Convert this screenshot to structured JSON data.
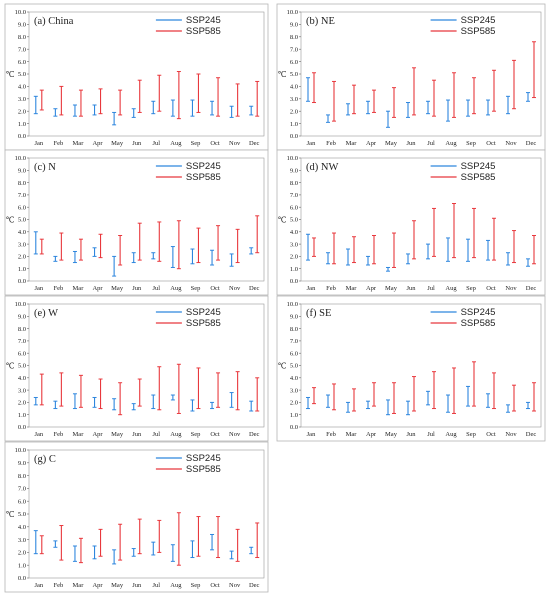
{
  "chart_data": [
    {
      "type": "errorbar",
      "title": "(a) China",
      "ylabel": "℃",
      "ylim": [
        0,
        10
      ],
      "yticks": [
        "0.0",
        "1.0",
        "2.0",
        "3.0",
        "4.0",
        "5.0",
        "6.0",
        "7.0",
        "8.0",
        "9.0",
        "10.0"
      ],
      "categories": [
        "Jan",
        "Feb",
        "Mar",
        "Apr",
        "May",
        "Jun",
        "Jul",
        "Aug",
        "Sep",
        "Oct",
        "Nov",
        "Dec"
      ],
      "series": [
        {
          "name": "SSP245",
          "color": "#2e86de",
          "ranges": [
            [
              1.8,
              3.2
            ],
            [
              1.6,
              2.2
            ],
            [
              1.6,
              2.5
            ],
            [
              1.7,
              2.5
            ],
            [
              0.9,
              1.9
            ],
            [
              1.5,
              2.2
            ],
            [
              1.8,
              2.8
            ],
            [
              1.6,
              2.9
            ],
            [
              1.6,
              2.9
            ],
            [
              1.7,
              2.8
            ],
            [
              1.5,
              2.4
            ],
            [
              1.7,
              2.4
            ]
          ]
        },
        {
          "name": "SSP585",
          "color": "#e8383d",
          "ranges": [
            [
              2.1,
              3.7
            ],
            [
              1.7,
              4.0
            ],
            [
              1.6,
              3.7
            ],
            [
              1.8,
              3.8
            ],
            [
              1.7,
              3.7
            ],
            [
              1.9,
              4.5
            ],
            [
              2.0,
              4.9
            ],
            [
              1.4,
              5.2
            ],
            [
              1.9,
              5.0
            ],
            [
              1.6,
              4.7
            ],
            [
              1.6,
              4.2
            ],
            [
              1.6,
              4.4
            ]
          ]
        }
      ]
    },
    {
      "type": "errorbar",
      "title": "(b) NE",
      "ylabel": "℃",
      "ylim": [
        0,
        10
      ],
      "yticks": [
        "0.0",
        "1.0",
        "2.0",
        "3.0",
        "4.0",
        "5.0",
        "6.0",
        "7.0",
        "8.0",
        "9.0",
        "10.0"
      ],
      "categories": [
        "Jan",
        "Feb",
        "Mar",
        "Apr",
        "May",
        "Jun",
        "Jul",
        "Aug",
        "Sep",
        "Oct",
        "Nov",
        "Dec"
      ],
      "series": [
        {
          "name": "SSP245",
          "color": "#2e86de",
          "ranges": [
            [
              2.8,
              4.7
            ],
            [
              1.1,
              1.7
            ],
            [
              1.7,
              2.6
            ],
            [
              1.8,
              2.8
            ],
            [
              0.7,
              2.0
            ],
            [
              1.5,
              2.7
            ],
            [
              1.8,
              2.8
            ],
            [
              1.2,
              2.9
            ],
            [
              1.6,
              2.9
            ],
            [
              1.7,
              2.9
            ],
            [
              1.8,
              3.2
            ],
            [
              2.8,
              3.5
            ]
          ]
        },
        {
          "name": "SSP585",
          "color": "#e8383d",
          "ranges": [
            [
              2.7,
              5.1
            ],
            [
              1.2,
              4.4
            ],
            [
              1.8,
              4.1
            ],
            [
              1.9,
              3.7
            ],
            [
              1.5,
              3.9
            ],
            [
              1.7,
              5.5
            ],
            [
              1.6,
              4.5
            ],
            [
              1.5,
              5.1
            ],
            [
              1.8,
              4.7
            ],
            [
              2.0,
              5.3
            ],
            [
              2.2,
              6.1
            ],
            [
              3.1,
              7.6
            ]
          ]
        }
      ]
    },
    {
      "type": "errorbar",
      "title": "(c) N",
      "ylabel": "℃",
      "ylim": [
        0,
        10
      ],
      "yticks": [
        "0.0",
        "1.0",
        "2.0",
        "3.0",
        "4.0",
        "5.0",
        "6.0",
        "7.0",
        "8.0",
        "9.0",
        "10.0"
      ],
      "categories": [
        "Jan",
        "Feb",
        "Mar",
        "Apr",
        "May",
        "Jun",
        "Jul",
        "Aug",
        "Sep",
        "Oct",
        "Nov",
        "Dec"
      ],
      "series": [
        {
          "name": "SSP245",
          "color": "#2e86de",
          "ranges": [
            [
              2.2,
              4.0
            ],
            [
              1.6,
              2.0
            ],
            [
              1.5,
              2.4
            ],
            [
              2.0,
              2.7
            ],
            [
              0.4,
              2.0
            ],
            [
              1.5,
              2.3
            ],
            [
              1.8,
              2.3
            ],
            [
              1.1,
              2.8
            ],
            [
              1.4,
              2.6
            ],
            [
              1.3,
              2.5
            ],
            [
              1.2,
              2.2
            ],
            [
              2.2,
              2.7
            ]
          ]
        },
        {
          "name": "SSP585",
          "color": "#e8383d",
          "ranges": [
            [
              2.2,
              3.4
            ],
            [
              1.7,
              3.9
            ],
            [
              1.7,
              3.4
            ],
            [
              1.9,
              3.8
            ],
            [
              1.3,
              3.7
            ],
            [
              1.7,
              4.7
            ],
            [
              1.6,
              4.8
            ],
            [
              1.0,
              4.9
            ],
            [
              1.5,
              4.3
            ],
            [
              1.7,
              4.5
            ],
            [
              1.5,
              4.2
            ],
            [
              2.3,
              5.3
            ]
          ]
        }
      ]
    },
    {
      "type": "errorbar",
      "title": "(d) NW",
      "ylabel": "℃",
      "ylim": [
        0,
        10
      ],
      "yticks": [
        "0.0",
        "1.0",
        "2.0",
        "3.0",
        "4.0",
        "5.0",
        "6.0",
        "7.0",
        "8.0",
        "9.0",
        "10.0"
      ],
      "categories": [
        "Jan",
        "Feb",
        "Mar",
        "Apr",
        "May",
        "Jun",
        "Jul",
        "Aug",
        "Sep",
        "Oct",
        "Nov",
        "Dec"
      ],
      "series": [
        {
          "name": "SSP245",
          "color": "#2e86de",
          "ranges": [
            [
              1.7,
              3.8
            ],
            [
              1.4,
              2.3
            ],
            [
              1.3,
              2.6
            ],
            [
              1.3,
              2.0
            ],
            [
              0.8,
              1.1
            ],
            [
              1.4,
              2.2
            ],
            [
              1.8,
              3.0
            ],
            [
              1.6,
              3.5
            ],
            [
              1.6,
              3.4
            ],
            [
              1.7,
              3.3
            ],
            [
              1.3,
              2.3
            ],
            [
              1.2,
              1.8
            ]
          ]
        },
        {
          "name": "SSP585",
          "color": "#e8383d",
          "ranges": [
            [
              2.0,
              3.5
            ],
            [
              1.4,
              3.9
            ],
            [
              1.5,
              3.6
            ],
            [
              1.4,
              3.7
            ],
            [
              1.1,
              3.9
            ],
            [
              1.8,
              4.9
            ],
            [
              2.0,
              5.9
            ],
            [
              1.9,
              6.3
            ],
            [
              1.9,
              5.9
            ],
            [
              1.7,
              5.1
            ],
            [
              1.5,
              4.1
            ],
            [
              1.4,
              3.7
            ]
          ]
        }
      ]
    },
    {
      "type": "errorbar",
      "title": "(e) W",
      "ylabel": "℃",
      "ylim": [
        0,
        10
      ],
      "yticks": [
        "0.0",
        "1.0",
        "2.0",
        "3.0",
        "4.0",
        "5.0",
        "6.0",
        "7.0",
        "8.0",
        "9.0",
        "10.0"
      ],
      "categories": [
        "Jan",
        "Feb",
        "Mar",
        "Apr",
        "May",
        "Jun",
        "Jul",
        "Aug",
        "Sep",
        "Oct",
        "Nov",
        "Dec"
      ],
      "series": [
        {
          "name": "SSP245",
          "color": "#2e86de",
          "ranges": [
            [
              1.8,
              2.4
            ],
            [
              1.5,
              2.1
            ],
            [
              1.5,
              2.7
            ],
            [
              1.6,
              2.4
            ],
            [
              1.4,
              2.3
            ],
            [
              1.4,
              1.9
            ],
            [
              1.5,
              2.6
            ],
            [
              2.2,
              2.6
            ],
            [
              1.3,
              2.2
            ],
            [
              1.5,
              2.0
            ],
            [
              1.6,
              2.8
            ],
            [
              1.3,
              2.1
            ]
          ]
        },
        {
          "name": "SSP585",
          "color": "#e8383d",
          "ranges": [
            [
              1.8,
              4.3
            ],
            [
              1.7,
              4.4
            ],
            [
              1.6,
              4.2
            ],
            [
              1.5,
              3.9
            ],
            [
              1.0,
              3.6
            ],
            [
              1.7,
              3.9
            ],
            [
              1.4,
              4.9
            ],
            [
              1.1,
              5.1
            ],
            [
              1.5,
              4.8
            ],
            [
              1.6,
              4.4
            ],
            [
              1.4,
              4.5
            ],
            [
              1.3,
              4.0
            ]
          ]
        }
      ]
    },
    {
      "type": "errorbar",
      "title": "(f) SE",
      "ylabel": "℃",
      "ylim": [
        0,
        10
      ],
      "yticks": [
        "0.0",
        "1.0",
        "2.0",
        "3.0",
        "4.0",
        "5.0",
        "6.0",
        "7.0",
        "8.0",
        "9.0",
        "10.0"
      ],
      "categories": [
        "Jan",
        "Feb",
        "Mar",
        "Apr",
        "May",
        "Jun",
        "Jul",
        "Aug",
        "Sep",
        "Oct",
        "Nov",
        "Dec"
      ],
      "series": [
        {
          "name": "SSP245",
          "color": "#2e86de",
          "ranges": [
            [
              1.5,
              2.4
            ],
            [
              1.6,
              2.6
            ],
            [
              1.2,
              2.0
            ],
            [
              1.5,
              2.1
            ],
            [
              1.0,
              2.2
            ],
            [
              1.0,
              2.1
            ],
            [
              1.8,
              2.9
            ],
            [
              1.2,
              2.6
            ],
            [
              1.7,
              3.3
            ],
            [
              1.6,
              2.7
            ],
            [
              1.2,
              1.8
            ],
            [
              1.5,
              2.0
            ]
          ]
        },
        {
          "name": "SSP585",
          "color": "#e8383d",
          "ranges": [
            [
              1.9,
              3.2
            ],
            [
              1.4,
              3.5
            ],
            [
              1.3,
              3.1
            ],
            [
              1.7,
              3.6
            ],
            [
              1.1,
              3.6
            ],
            [
              1.3,
              4.1
            ],
            [
              1.5,
              4.5
            ],
            [
              1.1,
              4.8
            ],
            [
              1.7,
              5.3
            ],
            [
              1.5,
              4.4
            ],
            [
              1.3,
              3.4
            ],
            [
              1.3,
              3.6
            ]
          ]
        }
      ]
    },
    {
      "type": "errorbar",
      "title": "(g) C",
      "ylabel": "℃",
      "ylim": [
        0,
        10
      ],
      "yticks": [
        "0.0",
        "1.0",
        "2.0",
        "3.0",
        "4.0",
        "5.0",
        "6.0",
        "7.0",
        "8.0",
        "9.0",
        "10.0"
      ],
      "categories": [
        "Jan",
        "Feb",
        "Mar",
        "Apr",
        "May",
        "Jun",
        "Jul",
        "Aug",
        "Sep",
        "Oct",
        "Nov",
        "Dec"
      ],
      "series": [
        {
          "name": "SSP245",
          "color": "#2e86de",
          "ranges": [
            [
              1.9,
              3.7
            ],
            [
              2.4,
              2.9
            ],
            [
              1.3,
              2.5
            ],
            [
              1.5,
              2.5
            ],
            [
              1.1,
              2.2
            ],
            [
              1.7,
              2.3
            ],
            [
              1.8,
              2.8
            ],
            [
              1.3,
              2.6
            ],
            [
              1.6,
              2.9
            ],
            [
              2.2,
              3.4
            ],
            [
              1.5,
              2.1
            ],
            [
              1.9,
              2.4
            ]
          ]
        },
        {
          "name": "SSP585",
          "color": "#e8383d",
          "ranges": [
            [
              1.9,
              3.3
            ],
            [
              1.4,
              4.1
            ],
            [
              1.2,
              3.1
            ],
            [
              1.7,
              3.8
            ],
            [
              1.4,
              4.2
            ],
            [
              1.9,
              4.6
            ],
            [
              2.0,
              4.5
            ],
            [
              1.0,
              5.1
            ],
            [
              1.7,
              4.8
            ],
            [
              1.6,
              4.8
            ],
            [
              1.3,
              3.8
            ],
            [
              1.6,
              4.3
            ]
          ]
        }
      ]
    }
  ]
}
